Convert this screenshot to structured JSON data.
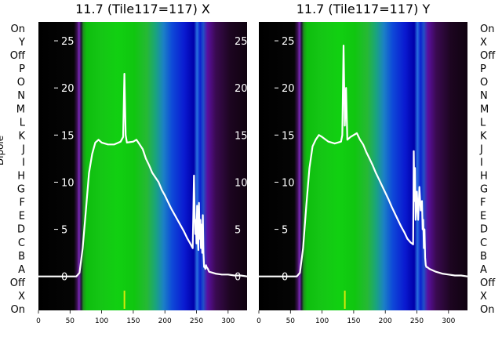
{
  "chart_data": [
    {
      "type": "heatmap",
      "title": "11.7 (Tile117=117) X",
      "ylabel": "Dipole",
      "categories": [
        "On",
        "Y",
        "Off",
        "P",
        "O",
        "N",
        "M",
        "L",
        "K",
        "J",
        "I",
        "H",
        "G",
        "F",
        "E",
        "D",
        "C",
        "B",
        "A",
        "Off",
        "X",
        "On"
      ],
      "x_ticks": [
        0,
        50,
        100,
        150,
        200,
        250,
        300
      ],
      "xlim": [
        0,
        330
      ],
      "y2_ticks": [
        0,
        5,
        10,
        15,
        20,
        25
      ],
      "y2lim": [
        -3.6,
        27
      ],
      "series": [
        {
          "x": [
            0,
            60,
            65,
            70,
            75,
            80,
            85,
            90,
            95,
            100,
            110,
            120,
            130,
            134,
            136,
            138,
            140,
            150,
            155,
            160,
            165,
            170,
            175,
            180,
            185,
            190,
            195,
            200,
            205,
            210,
            215,
            220,
            225,
            230,
            235,
            240,
            244,
            246,
            247,
            248,
            249,
            250,
            251,
            252,
            253,
            254,
            255,
            256,
            257,
            258,
            259,
            260,
            261,
            262,
            263,
            264,
            265,
            266,
            267,
            268,
            270,
            280,
            290,
            300,
            310,
            320,
            330
          ],
          "values": [
            0.0,
            0.0,
            0.4,
            3.0,
            7.0,
            11.0,
            13.0,
            14.2,
            14.5,
            14.2,
            14.0,
            14.0,
            14.3,
            14.8,
            21.5,
            15.0,
            14.2,
            14.3,
            14.5,
            14.0,
            13.5,
            12.5,
            11.8,
            11.0,
            10.5,
            10.0,
            9.2,
            8.6,
            7.9,
            7.2,
            6.6,
            6.0,
            5.4,
            4.8,
            4.1,
            3.5,
            3.0,
            10.7,
            7.0,
            4.5,
            6.0,
            3.5,
            7.5,
            4.0,
            2.8,
            7.8,
            4.0,
            6.0,
            3.0,
            5.5,
            2.5,
            6.5,
            2.5,
            1.0,
            1.0,
            0.8,
            1.2,
            1.0,
            0.9,
            0.8,
            0.5,
            0.3,
            0.2,
            0.2,
            0.1,
            0.1,
            0.0
          ]
        }
      ]
    },
    {
      "type": "heatmap",
      "title": "11.7 (Tile117=117) Y",
      "categories": [
        "On",
        "X",
        "Off",
        "P",
        "O",
        "N",
        "M",
        "L",
        "K",
        "J",
        "I",
        "H",
        "G",
        "F",
        "E",
        "D",
        "C",
        "B",
        "A",
        "Off",
        "X",
        "On"
      ],
      "x_ticks": [
        0,
        50,
        100,
        150,
        200,
        250,
        300
      ],
      "xlim": [
        0,
        330
      ],
      "y2_ticks": [
        0,
        5,
        10,
        15,
        20,
        25
      ],
      "y2lim": [
        -3.6,
        27
      ],
      "series": [
        {
          "x": [
            0,
            60,
            65,
            70,
            75,
            80,
            85,
            90,
            95,
            100,
            110,
            120,
            130,
            132,
            134,
            136,
            138,
            140,
            145,
            150,
            155,
            160,
            165,
            170,
            175,
            180,
            185,
            190,
            195,
            200,
            205,
            210,
            215,
            220,
            225,
            230,
            235,
            240,
            244,
            245,
            246,
            247,
            248,
            250,
            252,
            254,
            256,
            258,
            259,
            260,
            261,
            262,
            263,
            264,
            265,
            266,
            268,
            270,
            280,
            290,
            300,
            310,
            320,
            330
          ],
          "values": [
            0.0,
            0.0,
            0.4,
            3.0,
            7.5,
            11.5,
            13.8,
            14.5,
            15.0,
            14.8,
            14.3,
            14.1,
            14.3,
            15.0,
            24.5,
            16.0,
            20.0,
            14.5,
            14.8,
            15.0,
            15.2,
            14.5,
            14.0,
            13.2,
            12.5,
            11.8,
            11.0,
            10.3,
            9.6,
            8.9,
            8.2,
            7.4,
            6.7,
            6.0,
            5.3,
            4.7,
            4.0,
            3.6,
            3.4,
            13.3,
            8.0,
            11.5,
            6.0,
            9.0,
            6.0,
            9.5,
            7.0,
            8.0,
            5.0,
            6.0,
            3.0,
            5.0,
            2.0,
            1.2,
            1.0,
            1.0,
            0.9,
            0.8,
            0.5,
            0.3,
            0.2,
            0.1,
            0.1,
            0.0
          ]
        }
      ]
    }
  ]
}
